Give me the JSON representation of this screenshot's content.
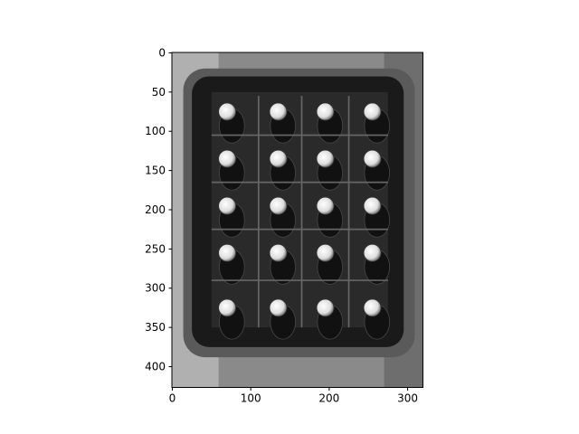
{
  "chart_data": {
    "type": "image",
    "xlim": [
      -0.5,
      319.5
    ],
    "ylim": [
      426.5,
      -0.5
    ],
    "xticks": [
      0,
      100,
      200,
      300
    ],
    "yticks": [
      0,
      50,
      100,
      150,
      200,
      250,
      300,
      350,
      400
    ]
  }
}
